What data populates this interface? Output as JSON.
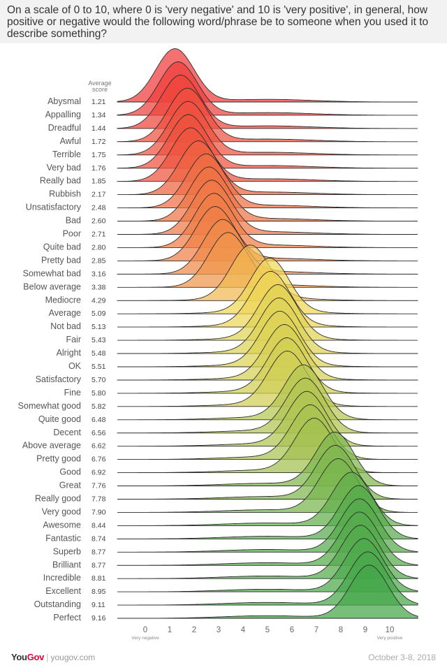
{
  "title": "On a scale of 0 to 10, where 0 is 'very negative' and 10 is 'very positive', in general, how positive or negative would the following word/phrase be to someone when you used it to describe something?",
  "average_header": [
    "Average",
    "score"
  ],
  "footer": {
    "brand_you": "You",
    "brand_gov": "Gov",
    "separator": "|",
    "url": "yougov.com",
    "date": "October 3-8, 2018"
  },
  "colors": {
    "negative": "#ee3a3a",
    "neutral": "#f2d857",
    "positive": "#42a64a",
    "header_bg": "#f2f2f2",
    "text": "#555555"
  },
  "chart_data": {
    "type": "ridgeline",
    "xlim": [
      0,
      10
    ],
    "x_ticks": [
      "0",
      "1",
      "2",
      "3",
      "4",
      "5",
      "6",
      "7",
      "8",
      "9",
      "10"
    ],
    "x_end_labels": [
      "Very negative",
      "Very positive"
    ],
    "legend": "none",
    "series": [
      {
        "name": "Abysmal",
        "average": "1.21",
        "value": 1.21
      },
      {
        "name": "Appalling",
        "average": "1.34",
        "value": 1.34
      },
      {
        "name": "Dreadful",
        "average": "1.44",
        "value": 1.44
      },
      {
        "name": "Awful",
        "average": "1.72",
        "value": 1.72
      },
      {
        "name": "Terrible",
        "average": "1.75",
        "value": 1.75
      },
      {
        "name": "Very bad",
        "average": "1.76",
        "value": 1.76
      },
      {
        "name": "Really bad",
        "average": "1.85",
        "value": 1.85
      },
      {
        "name": "Rubbish",
        "average": "2.17",
        "value": 2.17
      },
      {
        "name": "Unsatisfactory",
        "average": "2.48",
        "value": 2.48
      },
      {
        "name": "Bad",
        "average": "2.60",
        "value": 2.6
      },
      {
        "name": "Poor",
        "average": "2.71",
        "value": 2.71
      },
      {
        "name": "Quite bad",
        "average": "2.80",
        "value": 2.8
      },
      {
        "name": "Pretty bad",
        "average": "2.85",
        "value": 2.85
      },
      {
        "name": "Somewhat bad",
        "average": "3.16",
        "value": 3.16
      },
      {
        "name": "Below average",
        "average": "3.38",
        "value": 3.38
      },
      {
        "name": "Mediocre",
        "average": "4.29",
        "value": 4.29
      },
      {
        "name": "Average",
        "average": "5.09",
        "value": 5.09
      },
      {
        "name": "Not bad",
        "average": "5.13",
        "value": 5.13
      },
      {
        "name": "Fair",
        "average": "5.43",
        "value": 5.43
      },
      {
        "name": "Alright",
        "average": "5.48",
        "value": 5.48
      },
      {
        "name": "OK",
        "average": "5.51",
        "value": 5.51
      },
      {
        "name": "Satisfactory",
        "average": "5.70",
        "value": 5.7
      },
      {
        "name": "Fine",
        "average": "5.80",
        "value": 5.8
      },
      {
        "name": "Somewhat good",
        "average": "5.82",
        "value": 5.82
      },
      {
        "name": "Quite good",
        "average": "6.48",
        "value": 6.48
      },
      {
        "name": "Decent",
        "average": "6.56",
        "value": 6.56
      },
      {
        "name": "Above average",
        "average": "6.62",
        "value": 6.62
      },
      {
        "name": "Pretty good",
        "average": "6.76",
        "value": 6.76
      },
      {
        "name": "Good",
        "average": "6.92",
        "value": 6.92
      },
      {
        "name": "Great",
        "average": "7.76",
        "value": 7.76
      },
      {
        "name": "Really good",
        "average": "7.78",
        "value": 7.78
      },
      {
        "name": "Very good",
        "average": "7.90",
        "value": 7.9
      },
      {
        "name": "Awesome",
        "average": "8.44",
        "value": 8.44
      },
      {
        "name": "Fantastic",
        "average": "8.74",
        "value": 8.74
      },
      {
        "name": "Superb",
        "average": "8.77",
        "value": 8.77
      },
      {
        "name": "Brilliant",
        "average": "8.77",
        "value": 8.77
      },
      {
        "name": "Incredible",
        "average": "8.81",
        "value": 8.81
      },
      {
        "name": "Excellent",
        "average": "8.95",
        "value": 8.95
      },
      {
        "name": "Outstanding",
        "average": "9.11",
        "value": 9.11
      },
      {
        "name": "Perfect",
        "average": "9.16",
        "value": 9.16
      }
    ]
  }
}
